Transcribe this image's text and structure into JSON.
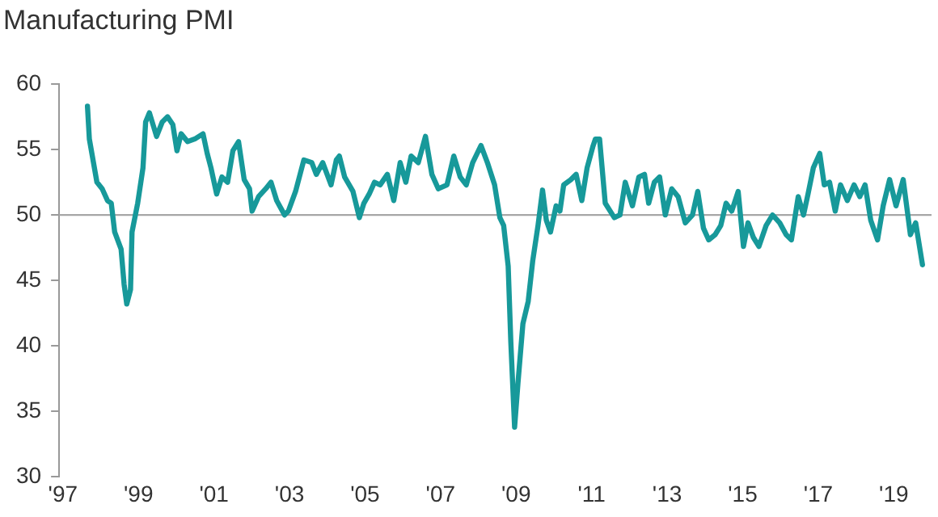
{
  "chart_data": {
    "type": "line",
    "title": "Manufacturing PMI",
    "x": [
      1997.65,
      1997.7,
      1997.9,
      1998.04,
      1998.18,
      1998.28,
      1998.37,
      1998.54,
      1998.62,
      1998.69,
      1998.79,
      1998.83,
      1998.98,
      1999.12,
      1999.19,
      1999.29,
      1999.48,
      1999.63,
      1999.77,
      1999.91,
      2000.02,
      2000.13,
      2000.3,
      2000.49,
      2000.71,
      2000.82,
      2000.92,
      2001.07,
      2001.21,
      2001.36,
      2001.5,
      2001.65,
      2001.8,
      2001.94,
      2002.01,
      2002.18,
      2002.37,
      2002.51,
      2002.66,
      2002.87,
      2002.97,
      2003.16,
      2003.38,
      2003.59,
      2003.71,
      2003.88,
      2004.1,
      2004.24,
      2004.32,
      2004.46,
      2004.68,
      2004.85,
      2004.97,
      2005.11,
      2005.25,
      2005.4,
      2005.59,
      2005.76,
      2005.93,
      2006.08,
      2006.22,
      2006.41,
      2006.6,
      2006.77,
      2006.94,
      2007.17,
      2007.35,
      2007.52,
      2007.68,
      2007.85,
      2008.07,
      2008.24,
      2008.43,
      2008.57,
      2008.67,
      2008.79,
      2008.86,
      2008.96,
      2009.05,
      2009.18,
      2009.32,
      2009.44,
      2009.58,
      2009.7,
      2009.8,
      2009.91,
      2010.06,
      2010.16,
      2010.26,
      2010.45,
      2010.59,
      2010.74,
      2010.88,
      2011.03,
      2011.1,
      2011.21,
      2011.36,
      2011.6,
      2011.75,
      2011.89,
      2012.08,
      2012.25,
      2012.4,
      2012.51,
      2012.66,
      2012.8,
      2012.95,
      2013.12,
      2013.29,
      2013.48,
      2013.67,
      2013.81,
      2013.96,
      2014.1,
      2014.27,
      2014.42,
      2014.56,
      2014.71,
      2014.88,
      2015.02,
      2015.14,
      2015.28,
      2015.43,
      2015.62,
      2015.79,
      2015.98,
      2016.15,
      2016.29,
      2016.47,
      2016.61,
      2016.73,
      2016.87,
      2017.04,
      2017.16,
      2017.3,
      2017.45,
      2017.59,
      2017.77,
      2017.95,
      2018.1,
      2018.24,
      2018.39,
      2018.57,
      2018.72,
      2018.89,
      2019.06,
      2019.25,
      2019.44,
      2019.58,
      2019.76
    ],
    "series": [
      {
        "color": "#17999a",
        "values": [
          58.3,
          55.8,
          52.5,
          52.0,
          51.1,
          50.9,
          48.7,
          47.4,
          44.7,
          43.2,
          44.3,
          48.7,
          50.9,
          53.6,
          57.1,
          57.8,
          56.0,
          57.1,
          57.5,
          56.9,
          54.9,
          56.2,
          55.6,
          55.8,
          56.2,
          54.7,
          53.6,
          51.6,
          52.9,
          52.5,
          54.9,
          55.6,
          52.7,
          52.0,
          50.3,
          51.4,
          52.0,
          52.5,
          51.1,
          50.0,
          50.3,
          51.8,
          54.2,
          54.0,
          53.1,
          54.0,
          52.3,
          54.2,
          54.5,
          52.9,
          51.8,
          49.8,
          50.9,
          51.6,
          52.5,
          52.3,
          53.1,
          51.1,
          54.0,
          52.5,
          54.5,
          54.0,
          56.0,
          53.1,
          52.0,
          52.3,
          54.5,
          52.9,
          52.3,
          54.0,
          55.3,
          54.0,
          52.3,
          49.8,
          49.2,
          46.1,
          40.3,
          33.8,
          37.2,
          41.7,
          43.4,
          46.5,
          49.2,
          51.9,
          49.6,
          48.7,
          50.7,
          50.3,
          52.3,
          52.7,
          53.1,
          51.1,
          53.6,
          55.2,
          55.8,
          55.8,
          50.9,
          49.8,
          50.0,
          52.5,
          50.7,
          52.9,
          53.1,
          50.9,
          52.5,
          52.9,
          50.0,
          52.0,
          51.4,
          49.4,
          50.0,
          51.8,
          49.0,
          48.1,
          48.5,
          49.2,
          50.9,
          50.3,
          51.8,
          47.6,
          49.4,
          48.3,
          47.6,
          49.2,
          50.0,
          49.4,
          48.5,
          48.1,
          51.4,
          50.0,
          51.6,
          53.6,
          54.7,
          52.3,
          52.5,
          50.3,
          52.3,
          51.1,
          52.3,
          51.4,
          52.3,
          49.6,
          48.1,
          50.7,
          52.7,
          50.7,
          52.7,
          48.5,
          49.4,
          46.2
        ]
      }
    ],
    "xlim": [
      1996.9,
      2020
    ],
    "xticks": [
      {
        "value": 1997,
        "label": "'97"
      },
      {
        "value": 1999,
        "label": "'99"
      },
      {
        "value": 2001,
        "label": "'01"
      },
      {
        "value": 2003,
        "label": "'03"
      },
      {
        "value": 2005,
        "label": "'05"
      },
      {
        "value": 2007,
        "label": "'07"
      },
      {
        "value": 2009,
        "label": "'09"
      },
      {
        "value": 2011,
        "label": "'11"
      },
      {
        "value": 2013,
        "label": "'13"
      },
      {
        "value": 2015,
        "label": "'15"
      },
      {
        "value": 2017,
        "label": "'17"
      },
      {
        "value": 2019,
        "label": "'19"
      }
    ],
    "ylim": [
      30,
      60
    ],
    "yticks": [
      30,
      35,
      40,
      45,
      50,
      55,
      60
    ],
    "ref_lines": [
      {
        "axis": "y",
        "value": 50,
        "color": "#a6a6a6"
      }
    ],
    "grid": false,
    "legend": false,
    "marker": "none",
    "line_style": "solid"
  }
}
